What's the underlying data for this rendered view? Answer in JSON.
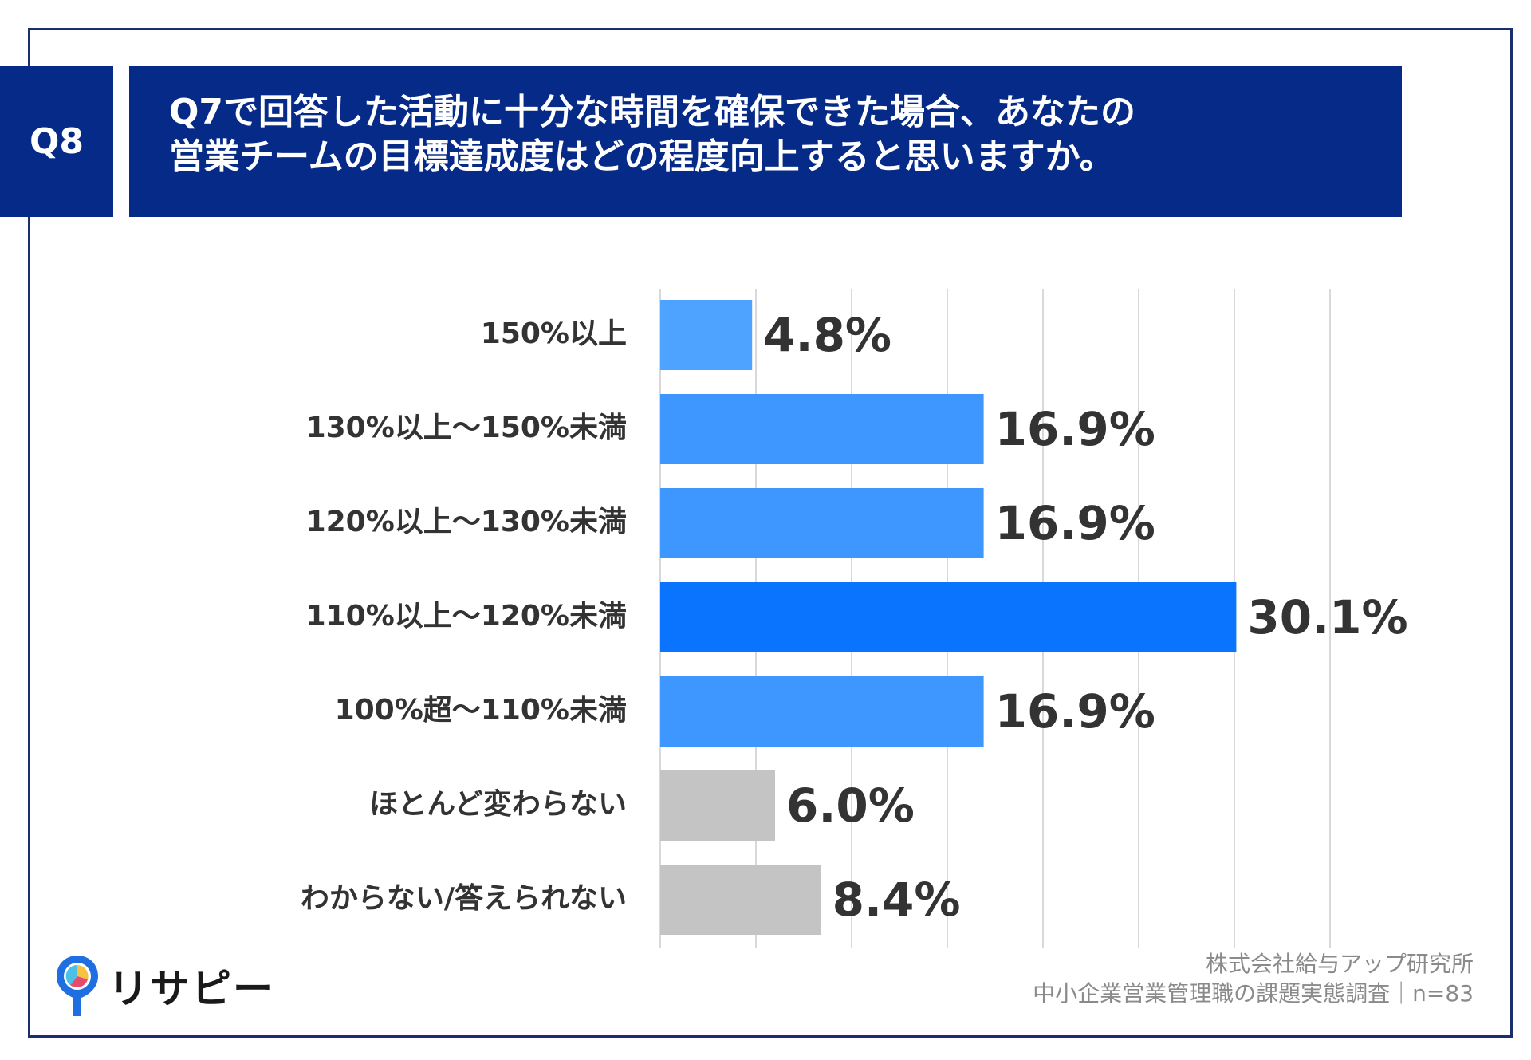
{
  "badge": "Q8",
  "title": {
    "line1": "Q7で回答した活動に十分な時間を確保できた場合、あなたの",
    "line2": "営業チームの目標達成度はどの程度向上すると思いますか。"
  },
  "colors": {
    "navy": "#062a87",
    "blue_light": "#4da3ff",
    "blue_mid": "#3d97ff",
    "blue_strong": "#0a74ff",
    "gray": "#c4c4c4",
    "grid": "#d9d9d9"
  },
  "chart_data": {
    "type": "bar",
    "orientation": "horizontal",
    "title": "Q7で回答した活動に十分な時間を確保できた場合、あなたの営業チームの目標達成度はどの程度向上すると思いますか。",
    "xlabel": "",
    "ylabel": "",
    "xlim": [
      0,
      35
    ],
    "grid": true,
    "unit": "%",
    "categories": [
      "150%以上",
      "130%以上～150%未満",
      "120%以上～130%未満",
      "110%以上～120%未満",
      "100%超～110%未満",
      "ほとんど変わらない",
      "わからない/答えられない"
    ],
    "values": [
      4.8,
      16.9,
      16.9,
      30.1,
      16.9,
      6.0,
      8.4
    ],
    "value_labels": [
      "4.8%",
      "16.9%",
      "16.9%",
      "30.1%",
      "16.9%",
      "6.0%",
      "8.4%"
    ],
    "bar_colors": [
      "#4da3ff",
      "#3d97ff",
      "#3d97ff",
      "#0a74ff",
      "#3d97ff",
      "#c4c4c4",
      "#c4c4c4"
    ]
  },
  "logo": {
    "text": "リサピー",
    "icon": "pin-pie-icon"
  },
  "source": {
    "line1": "株式会社給与アップ研究所",
    "line2": "中小企業営業管理職の課題実態調査｜n=83"
  }
}
